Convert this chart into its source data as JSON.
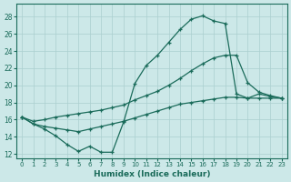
{
  "xlabel": "Humidex (Indice chaleur)",
  "xlim": [
    -0.5,
    23.5
  ],
  "ylim": [
    11.5,
    29.5
  ],
  "yticks": [
    12,
    14,
    16,
    18,
    20,
    22,
    24,
    26,
    28
  ],
  "xticks": [
    0,
    1,
    2,
    3,
    4,
    5,
    6,
    7,
    8,
    9,
    10,
    11,
    12,
    13,
    14,
    15,
    16,
    17,
    18,
    19,
    20,
    21,
    22,
    23
  ],
  "bg_color": "#cce8e8",
  "grid_color": "#aacfcf",
  "line_color": "#1a6b5a",
  "line1_x": [
    0,
    1,
    2,
    3,
    4,
    5,
    6,
    7,
    8,
    9,
    10,
    11,
    12,
    13,
    14,
    15,
    16,
    17,
    18,
    19,
    20,
    21,
    22,
    23
  ],
  "line1_y": [
    16.3,
    15.5,
    14.9,
    14.1,
    13.1,
    12.3,
    12.9,
    12.2,
    12.2,
    15.7,
    20.2,
    22.3,
    23.5,
    25.0,
    26.5,
    27.7,
    28.1,
    27.5,
    27.2,
    19.0,
    18.5,
    19.0,
    18.7,
    18.5
  ],
  "line2_x": [
    0,
    1,
    2,
    3,
    4,
    5,
    6,
    7,
    8,
    9,
    10,
    11,
    12,
    13,
    14,
    15,
    16,
    17,
    18,
    19,
    20,
    21,
    22,
    23
  ],
  "line2_y": [
    16.3,
    15.8,
    16.0,
    16.3,
    16.5,
    16.7,
    16.9,
    17.1,
    17.4,
    17.7,
    18.3,
    18.8,
    19.3,
    20.0,
    20.8,
    21.7,
    22.5,
    23.2,
    23.5,
    23.5,
    20.3,
    19.2,
    18.8,
    18.5
  ],
  "line3_x": [
    0,
    1,
    2,
    3,
    4,
    5,
    6,
    7,
    8,
    9,
    10,
    11,
    12,
    13,
    14,
    15,
    16,
    17,
    18,
    19,
    20,
    21,
    22,
    23
  ],
  "line3_y": [
    16.3,
    15.5,
    15.2,
    15.0,
    14.8,
    14.6,
    14.9,
    15.2,
    15.5,
    15.8,
    16.2,
    16.6,
    17.0,
    17.4,
    17.8,
    18.0,
    18.2,
    18.4,
    18.6,
    18.6,
    18.5,
    18.5,
    18.5,
    18.5
  ]
}
